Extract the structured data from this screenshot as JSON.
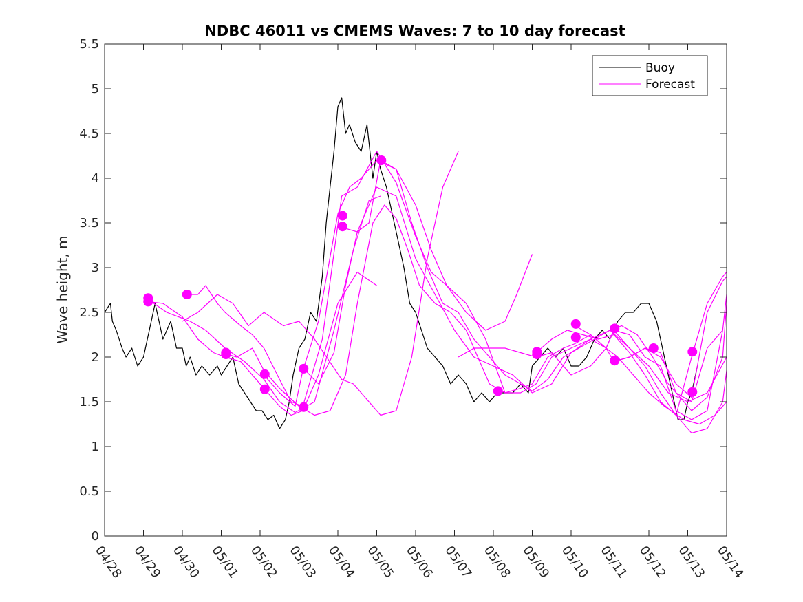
{
  "chart_data": {
    "type": "line",
    "title": "NDBC 46011 vs CMEMS Waves: 7 to 10 day forecast",
    "xlabel": "",
    "ylabel": "Wave height, m",
    "xlim": [
      0,
      16
    ],
    "ylim": [
      0,
      5.5
    ],
    "x_tick_values": [
      0,
      1,
      2,
      3,
      4,
      5,
      6,
      7,
      8,
      9,
      10,
      11,
      12,
      13,
      14,
      15,
      16
    ],
    "x_tick_labels": [
      "04/28",
      "04/29",
      "04/30",
      "05/01",
      "05/02",
      "05/03",
      "05/04",
      "05/05",
      "05/06",
      "05/07",
      "05/08",
      "05/09",
      "05/10",
      "05/11",
      "05/12",
      "05/13",
      "05/14"
    ],
    "y_tick_values": [
      0,
      0.5,
      1,
      1.5,
      2,
      2.5,
      3,
      3.5,
      4,
      4.5,
      5,
      5.5
    ],
    "y_tick_labels": [
      "0",
      "0.5",
      "1",
      "1.5",
      "2",
      "2.5",
      "3",
      "3.5",
      "4",
      "4.5",
      "5",
      "5.5"
    ],
    "x_units": "days since 04/28",
    "grid": false,
    "legend": {
      "position": "top-right",
      "entries": [
        "Buoy",
        "Forecast"
      ]
    },
    "colors": {
      "buoy": "#000000",
      "forecast": "#ff00ff"
    },
    "series": [
      {
        "name": "Buoy",
        "color": "#000000",
        "x": [
          0,
          0.15,
          0.2,
          0.3,
          0.45,
          0.55,
          0.7,
          0.85,
          1.0,
          1.15,
          1.3,
          1.5,
          1.7,
          1.85,
          2.0,
          2.1,
          2.2,
          2.35,
          2.5,
          2.7,
          2.9,
          3.0,
          3.15,
          3.3,
          3.45,
          3.6,
          3.75,
          3.9,
          4.05,
          4.2,
          4.35,
          4.5,
          4.65,
          4.75,
          4.85,
          5.0,
          5.15,
          5.3,
          5.45,
          5.6,
          5.7,
          5.8,
          5.9,
          6.0,
          6.1,
          6.2,
          6.3,
          6.45,
          6.6,
          6.75,
          6.9,
          7.0,
          7.1,
          7.25,
          7.4,
          7.55,
          7.7,
          7.85,
          8.0,
          8.15,
          8.3,
          8.5,
          8.7,
          8.9,
          9.1,
          9.3,
          9.5,
          9.7,
          9.9,
          10.1,
          10.3,
          10.5,
          10.7,
          10.9,
          11.0,
          11.2,
          11.4,
          11.6,
          11.8,
          12.0,
          12.2,
          12.4,
          12.6,
          12.8,
          13.0,
          13.2,
          13.4,
          13.6,
          13.8,
          14.0,
          14.2,
          14.4,
          14.6,
          14.75,
          14.9,
          15.0,
          15.1,
          15.25
        ],
        "y": [
          2.5,
          2.6,
          2.4,
          2.3,
          2.1,
          2.0,
          2.1,
          1.9,
          2.0,
          2.3,
          2.6,
          2.2,
          2.4,
          2.1,
          2.1,
          1.9,
          2.0,
          1.8,
          1.9,
          1.8,
          1.9,
          1.8,
          1.9,
          2.0,
          1.7,
          1.6,
          1.5,
          1.4,
          1.4,
          1.3,
          1.35,
          1.2,
          1.3,
          1.5,
          1.8,
          2.1,
          2.2,
          2.5,
          2.4,
          2.9,
          3.5,
          3.9,
          4.3,
          4.8,
          4.9,
          4.5,
          4.6,
          4.4,
          4.3,
          4.6,
          4.0,
          4.3,
          4.1,
          3.9,
          3.6,
          3.3,
          3.0,
          2.6,
          2.5,
          2.3,
          2.1,
          2.0,
          1.9,
          1.7,
          1.8,
          1.7,
          1.5,
          1.6,
          1.5,
          1.6,
          1.6,
          1.6,
          1.7,
          1.6,
          1.9,
          2.0,
          2.1,
          2.0,
          2.1,
          1.9,
          1.9,
          2.0,
          2.2,
          2.3,
          2.2,
          2.4,
          2.5,
          2.5,
          2.6,
          2.6,
          2.4,
          2.0,
          1.6,
          1.3,
          1.3,
          1.5,
          1.6,
          1.9
        ]
      },
      {
        "name": "Forecast",
        "color": "#ff00ff",
        "x": [
          1.1,
          1.6,
          2.2,
          2.6,
          3.1,
          3.6,
          4.1,
          4.5,
          4.9,
          5.4,
          5.9,
          6.4,
          6.8,
          7.1
        ],
        "y": [
          2.65,
          2.5,
          2.4,
          2.3,
          2.1,
          1.95,
          1.75,
          1.5,
          1.38,
          1.5,
          2.3,
          3.2,
          3.75,
          3.8
        ]
      },
      {
        "x": [
          1.1,
          1.5,
          2.0,
          2.4,
          2.8,
          3.1,
          3.5,
          4.1,
          4.5,
          4.8,
          5.1,
          5.5,
          6.0,
          6.5,
          7.0
        ],
        "y": [
          2.62,
          2.6,
          2.45,
          2.2,
          2.05,
          2.0,
          1.95,
          1.65,
          1.45,
          1.35,
          1.4,
          1.8,
          2.6,
          2.95,
          2.8
        ]
      },
      {
        "x": [
          2.1,
          2.4,
          2.6,
          2.9,
          3.1,
          3.5,
          3.8,
          4.1,
          4.5,
          4.8,
          5.1,
          5.6,
          6.1,
          6.5,
          7.0,
          7.5,
          8.0,
          8.4,
          8.8,
          9.3,
          9.8,
          10.3,
          10.6,
          11.0
        ],
        "y": [
          2.7,
          2.7,
          2.8,
          2.6,
          2.5,
          2.35,
          2.25,
          2.1,
          1.75,
          1.5,
          1.45,
          2.2,
          3.8,
          3.9,
          4.3,
          3.95,
          3.35,
          2.95,
          2.8,
          2.5,
          2.3,
          2.4,
          2.7,
          3.15
        ]
      },
      {
        "x": [
          2.0,
          2.4,
          2.9,
          3.3,
          3.7,
          4.1,
          4.6,
          5.0,
          5.4,
          6.1,
          6.4,
          6.8,
          7.1,
          7.5,
          7.9,
          8.3,
          8.7,
          9.1
        ],
        "y": [
          2.4,
          2.5,
          2.7,
          2.6,
          2.35,
          2.5,
          2.35,
          2.4,
          2.2,
          1.75,
          1.7,
          1.5,
          1.35,
          1.4,
          2.0,
          3.1,
          3.9,
          4.3
        ]
      },
      {
        "x": [
          3.0,
          3.4,
          3.8,
          4.1,
          4.5,
          5.0,
          5.4,
          5.8,
          6.2,
          6.5,
          6.9,
          7.2,
          7.5,
          7.8,
          8.1,
          8.5,
          8.9,
          9.3,
          9.6,
          9.9,
          10.3,
          10.7,
          11.0,
          11.4,
          11.8,
          12.1,
          12.5,
          12.9,
          13.2,
          13.6,
          14.0,
          14.4,
          14.9,
          15.3,
          15.7,
          16.0
        ],
        "y": [
          2.05,
          2.0,
          2.1,
          1.85,
          1.65,
          1.45,
          1.35,
          1.4,
          1.8,
          2.6,
          3.5,
          3.7,
          3.55,
          3.2,
          2.8,
          2.6,
          2.5,
          2.3,
          2.0,
          1.7,
          1.6,
          1.65,
          1.7,
          2.0,
          2.1,
          2.15,
          2.25,
          2.1,
          2.0,
          1.8,
          1.6,
          1.45,
          1.3,
          1.25,
          1.35,
          1.5
        ]
      },
      {
        "x": [
          4.1,
          4.5,
          4.9,
          5.1,
          5.5,
          6.0,
          6.3,
          6.6,
          7.0,
          7.5,
          8.0,
          8.4,
          8.8,
          9.3,
          9.8,
          10.3,
          10.7,
          11.1,
          11.5,
          12.0,
          12.5,
          12.9,
          13.1,
          13.5,
          13.9,
          14.3,
          14.7,
          15.1,
          15.5,
          15.9,
          16.0
        ],
        "y": [
          1.8,
          1.6,
          1.45,
          1.85,
          2.4,
          3.6,
          3.9,
          4.0,
          4.2,
          4.1,
          3.7,
          3.2,
          2.8,
          2.6,
          2.2,
          1.6,
          1.6,
          1.7,
          2.0,
          2.1,
          2.2,
          2.1,
          2.3,
          2.1,
          1.9,
          1.6,
          1.35,
          1.15,
          1.2,
          1.5,
          1.85
        ]
      },
      {
        "x": [
          5.1,
          5.5,
          5.9,
          6.2,
          6.5,
          6.8,
          7.1,
          7.5,
          7.9,
          8.3,
          8.7,
          9.1,
          9.5,
          9.9,
          10.3,
          10.7,
          11.0,
          11.4,
          11.8,
          12.2,
          12.6,
          13.0,
          13.3,
          13.7,
          14.1,
          14.5,
          14.9,
          15.1,
          15.5,
          15.9,
          16.0
        ],
        "y": [
          1.88,
          1.7,
          2.05,
          2.8,
          3.4,
          3.5,
          4.2,
          4.1,
          3.5,
          3.0,
          2.6,
          2.5,
          2.2,
          2.0,
          1.8,
          1.7,
          1.62,
          1.75,
          2.0,
          2.1,
          2.2,
          2.3,
          2.35,
          2.25,
          2.0,
          1.7,
          1.5,
          1.4,
          1.55,
          2.0,
          2.6
        ]
      },
      {
        "x": [
          6.1,
          6.5,
          7.0,
          7.5,
          8.0,
          8.5,
          9.0,
          9.5,
          10.0,
          10.5,
          11.0,
          11.5,
          12.0,
          12.5,
          13.0,
          13.5,
          14.0,
          14.5,
          15.0,
          15.5,
          16.0
        ],
        "y": [
          3.45,
          3.4,
          3.9,
          3.8,
          3.1,
          2.7,
          2.3,
          2.0,
          1.9,
          1.8,
          1.6,
          1.7,
          2.05,
          2.2,
          2.3,
          2.1,
          1.9,
          1.6,
          1.5,
          1.6,
          2.0
        ]
      },
      {
        "x": [
          9.1,
          9.5,
          9.9,
          10.3,
          10.7,
          11.1,
          11.5,
          12.0,
          12.5,
          12.9,
          13.1,
          13.5,
          13.9,
          14.3,
          14.7,
          15.1,
          15.5,
          15.9,
          16.0
        ],
        "y": [
          2.0,
          2.1,
          2.1,
          2.1,
          2.05,
          2.0,
          2.05,
          1.8,
          1.9,
          2.1,
          2.3,
          2.25,
          2.0,
          1.9,
          1.4,
          1.3,
          1.4,
          2.3,
          2.7
        ]
      },
      {
        "x": [
          11.1,
          11.5,
          11.9,
          12.3,
          12.7,
          13.1,
          13.5,
          13.9,
          14.3,
          14.7,
          15.1,
          15.5,
          15.9,
          16.0
        ],
        "y": [
          2.05,
          2.2,
          2.3,
          2.25,
          2.2,
          2.25,
          2.05,
          1.8,
          1.5,
          1.35,
          2.0,
          2.6,
          2.9,
          2.95
        ]
      },
      {
        "x": [
          12.1,
          12.5,
          12.9,
          13.1,
          13.5,
          13.9,
          14.3,
          14.7,
          15.1,
          15.5,
          15.9
        ],
        "y": [
          2.35,
          2.25,
          2.1,
          1.95,
          2.0,
          2.1,
          2.05,
          1.6,
          1.5,
          2.1,
          2.3
        ]
      },
      {
        "x": [
          13.1,
          13.5,
          13.9,
          14.3,
          14.7,
          15.1,
          15.5,
          15.9,
          16.0
        ],
        "y": [
          1.95,
          2.0,
          2.1,
          2.0,
          1.7,
          1.55,
          2.5,
          2.85,
          2.9
        ]
      }
    ],
    "markers": [
      {
        "x": 1.12,
        "y": 2.66
      },
      {
        "x": 1.12,
        "y": 2.62
      },
      {
        "x": 2.12,
        "y": 2.7
      },
      {
        "x": 3.12,
        "y": 2.05
      },
      {
        "x": 3.12,
        "y": 2.03
      },
      {
        "x": 4.12,
        "y": 1.81
      },
      {
        "x": 4.12,
        "y": 1.64
      },
      {
        "x": 5.12,
        "y": 1.87
      },
      {
        "x": 5.12,
        "y": 1.44
      },
      {
        "x": 6.12,
        "y": 3.58
      },
      {
        "x": 6.12,
        "y": 3.46
      },
      {
        "x": 7.12,
        "y": 4.2
      },
      {
        "x": 10.12,
        "y": 1.62
      },
      {
        "x": 11.12,
        "y": 2.06
      },
      {
        "x": 11.12,
        "y": 2.03
      },
      {
        "x": 12.12,
        "y": 2.37
      },
      {
        "x": 12.12,
        "y": 2.22
      },
      {
        "x": 13.12,
        "y": 2.32
      },
      {
        "x": 13.12,
        "y": 1.96
      },
      {
        "x": 14.12,
        "y": 2.1
      },
      {
        "x": 15.12,
        "y": 2.06
      },
      {
        "x": 15.12,
        "y": 1.61
      }
    ]
  }
}
